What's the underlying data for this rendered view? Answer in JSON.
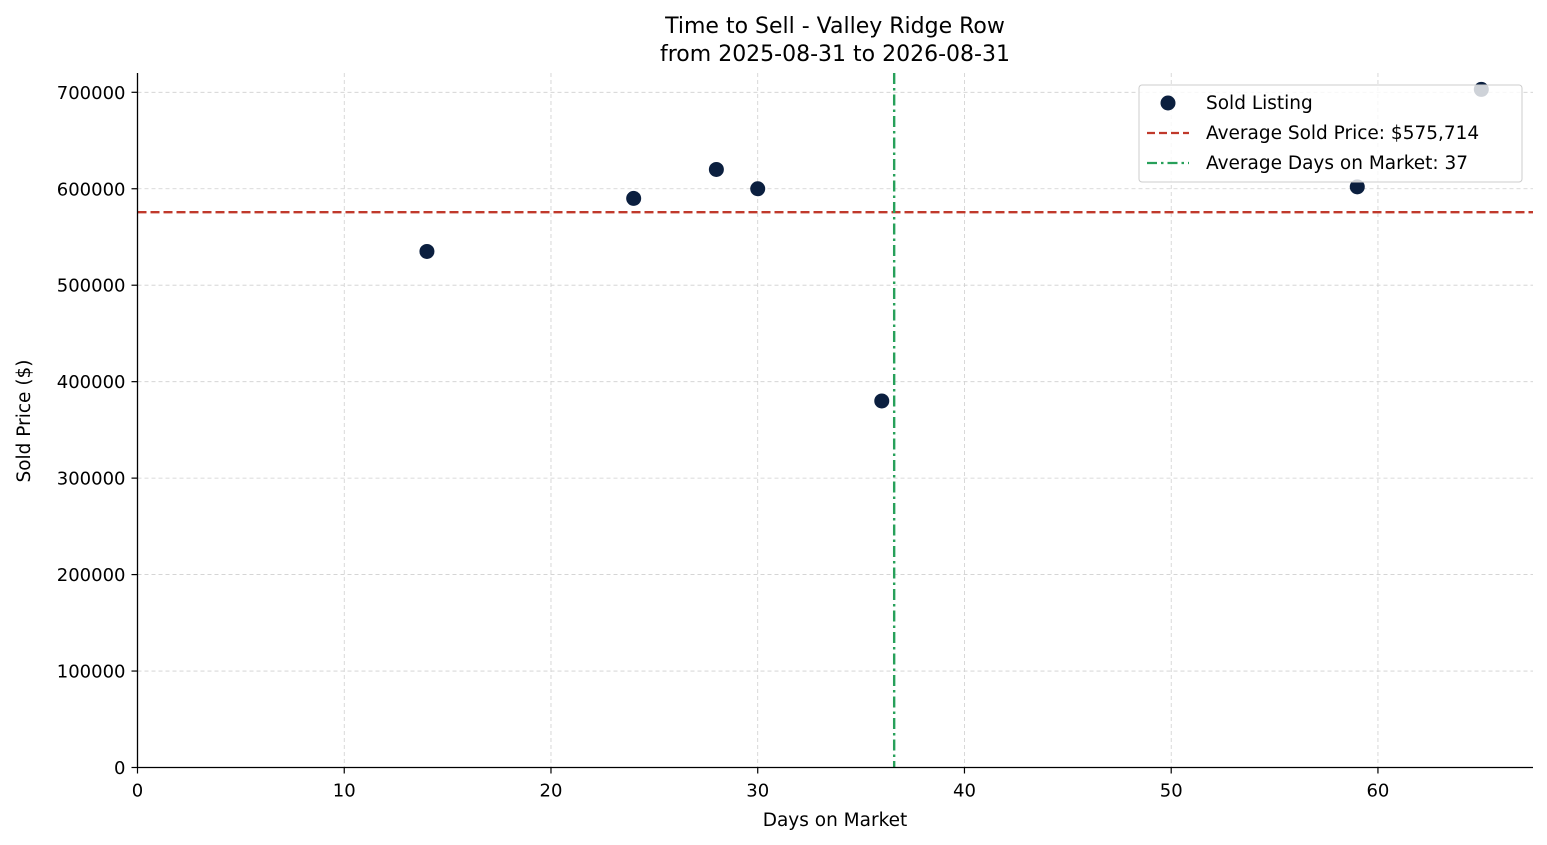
{
  "chart_data": {
    "type": "scatter",
    "title": "Time to Sell - Valley Ridge Row",
    "subtitle": "from 2025-08-31 to 2026-08-31",
    "xlabel": "Days on Market",
    "ylabel": "Sold Price ($)",
    "xlim": [
      0,
      67.5
    ],
    "ylim": [
      0,
      720000
    ],
    "x_ticks": [
      0,
      10,
      20,
      30,
      40,
      50,
      60
    ],
    "y_ticks": [
      0,
      100000,
      200000,
      300000,
      400000,
      500000,
      600000,
      700000
    ],
    "grid": true,
    "legend_position": "top-right",
    "series": [
      {
        "name": "Sold Listing",
        "color": "#0b1f3f",
        "points": [
          {
            "x": 14,
            "y": 535000
          },
          {
            "x": 24,
            "y": 590000
          },
          {
            "x": 28,
            "y": 620000
          },
          {
            "x": 30,
            "y": 600000
          },
          {
            "x": 36,
            "y": 380000
          },
          {
            "x": 59,
            "y": 602000
          },
          {
            "x": 65,
            "y": 703000
          }
        ]
      }
    ],
    "reference_lines": [
      {
        "orientation": "horizontal",
        "value": 575714,
        "label": "Average Sold Price: $575,714",
        "color": "#c0392b",
        "style": "dashed"
      },
      {
        "orientation": "vertical",
        "value": 36.6,
        "label": "Average Days on Market: 37",
        "color": "#27a05a",
        "style": "dashdot"
      }
    ]
  }
}
